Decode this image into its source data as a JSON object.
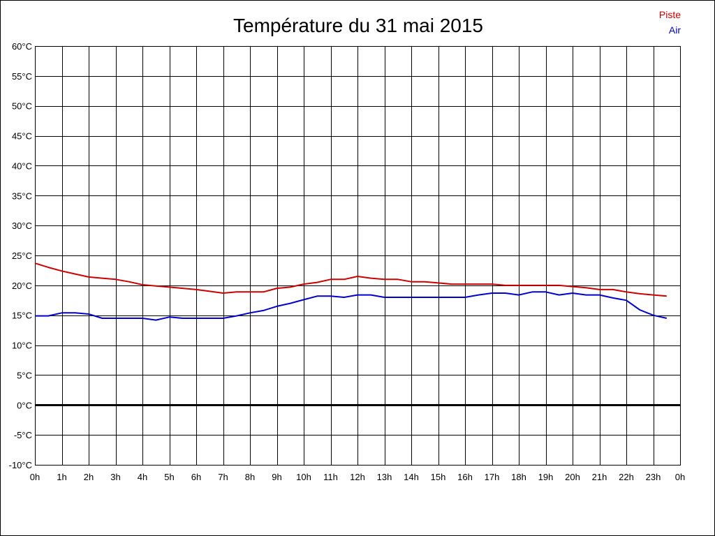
{
  "chart_data": {
    "type": "line",
    "title": "Température du 31 mai 2015",
    "xlabel": "",
    "ylabel": "",
    "xlim": [
      0,
      24
    ],
    "ylim": [
      -10,
      60
    ],
    "x_ticks": [
      0,
      1,
      2,
      3,
      4,
      5,
      6,
      7,
      8,
      9,
      10,
      11,
      12,
      13,
      14,
      15,
      16,
      17,
      18,
      19,
      20,
      21,
      22,
      23,
      24
    ],
    "x_tick_labels": [
      "0h",
      "1h",
      "2h",
      "3h",
      "4h",
      "5h",
      "6h",
      "7h",
      "8h",
      "9h",
      "10h",
      "11h",
      "12h",
      "13h",
      "14h",
      "15h",
      "16h",
      "17h",
      "18h",
      "19h",
      "20h",
      "21h",
      "22h",
      "23h",
      "0h"
    ],
    "y_ticks": [
      60,
      55,
      50,
      45,
      40,
      35,
      30,
      25,
      20,
      15,
      10,
      5,
      0,
      -5,
      -10
    ],
    "y_tick_labels": [
      "60°C",
      "55°C",
      "50°C",
      "45°C",
      "40°C",
      "35°C",
      "30°C",
      "25°C",
      "20°C",
      "15°C",
      "10°C",
      "5°C",
      "0°C",
      "-5°C",
      "-10°C"
    ],
    "grid": true,
    "zero_line": true,
    "legend_position": "top-right",
    "series": [
      {
        "name": "Piste",
        "color": "#cc0000",
        "points": [
          [
            0,
            23.7
          ],
          [
            0.5,
            23.0
          ],
          [
            1,
            22.4
          ],
          [
            1.5,
            21.9
          ],
          [
            2,
            21.4
          ],
          [
            2.5,
            21.2
          ],
          [
            3,
            21.0
          ],
          [
            3.5,
            20.6
          ],
          [
            4,
            20.1
          ],
          [
            4.5,
            19.9
          ],
          [
            5,
            19.7
          ],
          [
            5.5,
            19.5
          ],
          [
            6,
            19.3
          ],
          [
            6.5,
            19.0
          ],
          [
            7,
            18.7
          ],
          [
            7.5,
            18.9
          ],
          [
            8,
            18.9
          ],
          [
            8.5,
            18.9
          ],
          [
            9,
            19.5
          ],
          [
            9.5,
            19.7
          ],
          [
            10,
            20.2
          ],
          [
            10.5,
            20.5
          ],
          [
            11,
            21.0
          ],
          [
            11.5,
            21.0
          ],
          [
            12,
            21.5
          ],
          [
            12.5,
            21.2
          ],
          [
            13,
            21.0
          ],
          [
            13.5,
            21.0
          ],
          [
            14,
            20.6
          ],
          [
            14.5,
            20.6
          ],
          [
            15,
            20.4
          ],
          [
            15.5,
            20.2
          ],
          [
            16,
            20.2
          ],
          [
            16.5,
            20.2
          ],
          [
            17,
            20.2
          ],
          [
            17.5,
            20.0
          ],
          [
            18,
            20.0
          ],
          [
            18.5,
            20.0
          ],
          [
            19,
            20.0
          ],
          [
            19.5,
            20.0
          ],
          [
            20,
            19.8
          ],
          [
            20.5,
            19.6
          ],
          [
            21,
            19.3
          ],
          [
            21.5,
            19.3
          ],
          [
            22,
            18.9
          ],
          [
            22.5,
            18.6
          ],
          [
            23,
            18.4
          ],
          [
            23.5,
            18.2
          ]
        ]
      },
      {
        "name": "Air",
        "color": "#0000cc",
        "points": [
          [
            0,
            14.9
          ],
          [
            0.5,
            14.9
          ],
          [
            1,
            15.4
          ],
          [
            1.5,
            15.4
          ],
          [
            2,
            15.2
          ],
          [
            2.5,
            14.5
          ],
          [
            3,
            14.5
          ],
          [
            3.5,
            14.5
          ],
          [
            4,
            14.5
          ],
          [
            4.5,
            14.2
          ],
          [
            5,
            14.7
          ],
          [
            5.5,
            14.5
          ],
          [
            6,
            14.5
          ],
          [
            6.5,
            14.5
          ],
          [
            7,
            14.5
          ],
          [
            7.5,
            14.9
          ],
          [
            8,
            15.4
          ],
          [
            8.5,
            15.8
          ],
          [
            9,
            16.5
          ],
          [
            9.5,
            17.0
          ],
          [
            10,
            17.6
          ],
          [
            10.5,
            18.2
          ],
          [
            11,
            18.2
          ],
          [
            11.5,
            18.0
          ],
          [
            12,
            18.4
          ],
          [
            12.5,
            18.4
          ],
          [
            13,
            18.0
          ],
          [
            13.5,
            18.0
          ],
          [
            14,
            18.0
          ],
          [
            14.5,
            18.0
          ],
          [
            15,
            18.0
          ],
          [
            15.5,
            18.0
          ],
          [
            16,
            18.0
          ],
          [
            16.5,
            18.4
          ],
          [
            17,
            18.7
          ],
          [
            17.5,
            18.7
          ],
          [
            18,
            18.4
          ],
          [
            18.5,
            18.9
          ],
          [
            19,
            18.9
          ],
          [
            19.5,
            18.4
          ],
          [
            20,
            18.7
          ],
          [
            20.5,
            18.4
          ],
          [
            21,
            18.4
          ],
          [
            21.5,
            17.9
          ],
          [
            22,
            17.5
          ],
          [
            22.5,
            15.9
          ],
          [
            23,
            15.0
          ],
          [
            23.5,
            14.5
          ]
        ]
      }
    ]
  }
}
